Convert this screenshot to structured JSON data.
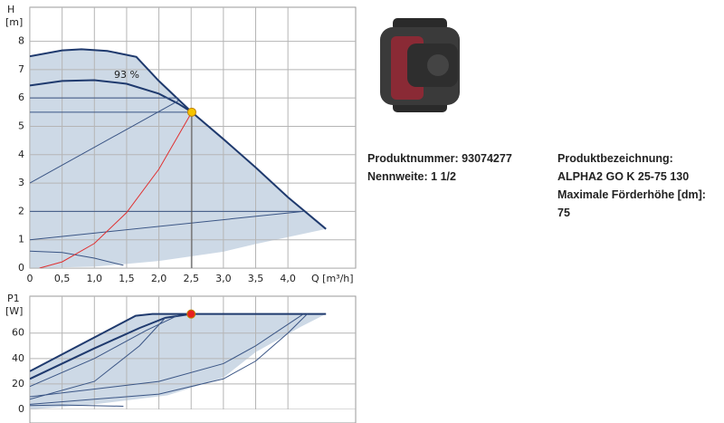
{
  "chart_data": [
    {
      "type": "line",
      "y_label": "H",
      "y_unit": "[m]",
      "x_label": "Q [m³/h]",
      "annotation": "93 %",
      "xlim": [
        0,
        5.05
      ],
      "ylim": [
        0,
        9.2
      ],
      "grid": true,
      "xticks": [
        0,
        {
          "value": 0.5,
          "label": "0,5"
        },
        {
          "value": 1,
          "label": "1,0"
        },
        {
          "value": 1.5,
          "label": "1,5"
        },
        {
          "value": 2,
          "label": "2,0"
        },
        {
          "value": 2.5,
          "label": "2,5"
        },
        {
          "value": 3,
          "label": "3,0"
        },
        {
          "value": 3.5,
          "label": "3,5"
        },
        {
          "value": 4,
          "label": "4,0"
        }
      ],
      "yticks": [
        0,
        1,
        2,
        3,
        4,
        5,
        6,
        7,
        8
      ],
      "series": [
        {
          "kind": "area",
          "color": "#cdd9e6",
          "x": [
            0,
            0.5,
            0.8,
            1.2,
            1.65,
            2.0,
            2.51,
            3.0,
            3.5,
            4.0,
            4.59,
            3.5,
            3.0,
            2.0,
            1.0,
            0
          ],
          "values": [
            7.47,
            7.68,
            7.72,
            7.66,
            7.45,
            6.6,
            5.5,
            4.55,
            3.55,
            2.5,
            1.38,
            0.85,
            0.58,
            0.25,
            0.05,
            0
          ]
        },
        {
          "kind": "line",
          "color": "#1f3a6e",
          "width": 2,
          "x": [
            0,
            0.5,
            0.8,
            1.2,
            1.65,
            2.0,
            2.51,
            3.0,
            3.5,
            4.0,
            4.59
          ],
          "values": [
            7.47,
            7.68,
            7.72,
            7.66,
            7.45,
            6.6,
            5.5,
            4.55,
            3.55,
            2.5,
            1.38
          ]
        },
        {
          "kind": "line",
          "color": "#1f3a6e",
          "width": 2,
          "x": [
            0,
            0.5,
            1.0,
            1.5,
            2.0,
            2.3,
            2.51
          ],
          "values": [
            6.44,
            6.6,
            6.63,
            6.5,
            6.15,
            5.8,
            5.5
          ]
        },
        {
          "kind": "line",
          "color": "#3a5585",
          "width": 1,
          "x": [
            0,
            2.3
          ],
          "values": [
            6.0,
            6.0
          ]
        },
        {
          "kind": "line",
          "color": "#3a5585",
          "width": 1,
          "x": [
            0,
            2.51
          ],
          "values": [
            5.5,
            5.5
          ]
        },
        {
          "kind": "line",
          "color": "#3a5585",
          "width": 1,
          "x": [
            0,
            4.24
          ],
          "values": [
            2.0,
            2.0
          ]
        },
        {
          "kind": "line",
          "color": "#3a5585",
          "width": 1,
          "x": [
            0,
            2.3
          ],
          "values": [
            3.0,
            5.9
          ]
        },
        {
          "kind": "line",
          "color": "#3a5585",
          "width": 1,
          "x": [
            0,
            4.24
          ],
          "values": [
            1.0,
            2.0
          ]
        },
        {
          "kind": "line",
          "color": "#3a5585",
          "width": 1,
          "x": [
            0,
            0.5,
            1.0,
            1.45
          ],
          "values": [
            0.6,
            0.55,
            0.35,
            0.1
          ]
        },
        {
          "kind": "line",
          "color": "#555555",
          "width": 1,
          "x": [
            2.51,
            2.51
          ],
          "values": [
            0,
            5.5
          ]
        },
        {
          "kind": "line",
          "color": "#e03030",
          "width": 1,
          "x": [
            0.15,
            0.5,
            1.0,
            1.5,
            2.0,
            2.51
          ],
          "values": [
            0,
            0.22,
            0.87,
            1.96,
            3.49,
            5.5
          ]
        },
        {
          "kind": "point",
          "color": "#f5c400",
          "x": [
            2.51
          ],
          "values": [
            5.5
          ]
        }
      ]
    },
    {
      "type": "line",
      "y_label": "P1",
      "y_unit": "[W]",
      "xlim": [
        0,
        5.05
      ],
      "ylim": [
        0,
        89
      ],
      "grid": true,
      "yticks": [
        0,
        20,
        40,
        60
      ],
      "series": [
        {
          "kind": "area",
          "color": "#cdd9e6",
          "x": [
            0,
            1.64,
            1.9,
            4.59,
            4.2,
            3.5,
            3.0,
            2.13,
            1.0,
            0
          ],
          "values": [
            30,
            73.6,
            75,
            75,
            65,
            45,
            25,
            11,
            4,
            0
          ]
        },
        {
          "kind": "line",
          "color": "#1f3a6e",
          "width": 2,
          "x": [
            0,
            1.64,
            1.9,
            4.59
          ],
          "values": [
            30,
            73.6,
            75,
            75
          ]
        },
        {
          "kind": "line",
          "color": "#1f3a6e",
          "width": 2,
          "x": [
            0,
            1.0,
            1.7,
            2.1,
            2.5
          ],
          "values": [
            24,
            48,
            64,
            72,
            75
          ]
        },
        {
          "kind": "line",
          "color": "#3a5585",
          "width": 1,
          "x": [
            0,
            1.0,
            1.8,
            2.3
          ],
          "values": [
            18,
            40,
            62,
            74
          ]
        },
        {
          "kind": "line",
          "color": "#3a5585",
          "width": 1,
          "x": [
            0,
            1.0,
            1.7,
            2.1
          ],
          "values": [
            8,
            22,
            50,
            72
          ]
        },
        {
          "kind": "line",
          "color": "#3a5585",
          "width": 1,
          "x": [
            0,
            2.0,
            3.0,
            3.5,
            4.0,
            4.3
          ],
          "values": [
            4,
            12,
            24,
            38,
            60,
            75
          ]
        },
        {
          "kind": "line",
          "color": "#3a5585",
          "width": 1,
          "x": [
            0,
            2.0,
            3.0,
            3.5,
            4.24
          ],
          "values": [
            10,
            22,
            36,
            50,
            75
          ]
        },
        {
          "kind": "line",
          "color": "#3a5585",
          "width": 1,
          "x": [
            0,
            0.5,
            1.45
          ],
          "values": [
            3,
            3.5,
            2.5
          ]
        },
        {
          "kind": "point",
          "color": "#e82020",
          "x": [
            2.5
          ],
          "values": [
            75
          ]
        }
      ]
    }
  ],
  "product": {
    "number": "Produktnummer: 93074277",
    "nominal": "Nennweite: 1 1/2",
    "designation_label": "Produktbezeichnung:",
    "designation": "ALPHA2 GO K 25-75 130",
    "max_head_label": "Maximale Förderhöhe [dm]:",
    "max_head": "75"
  }
}
